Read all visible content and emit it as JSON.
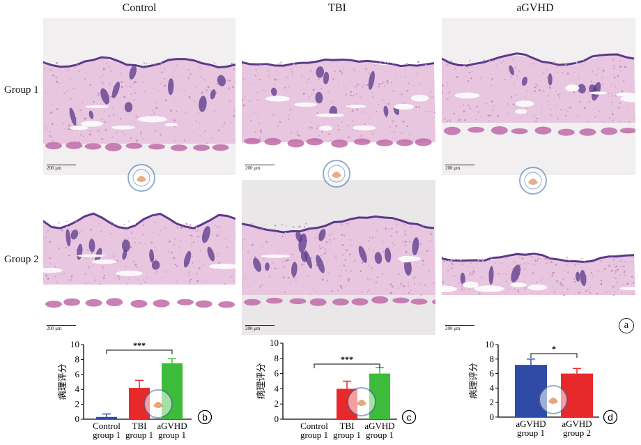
{
  "figure": {
    "column_titles": [
      "Control",
      "TBI",
      "aGVHD"
    ],
    "row_labels": [
      "Group 1",
      "Group 2"
    ],
    "panel_a_badge": "a",
    "scale_bar_labels": [
      "200 μm",
      "200 μm",
      "200 μm",
      "200 μm",
      "200 μm",
      "200 μm"
    ],
    "colors": {
      "he_pink": "#e8c6df",
      "he_purple": "#5a3a8a",
      "muscle": "#c06aa8",
      "bar_red": "#e8292b",
      "bar_green": "#3dbb3a",
      "bar_blue": "#2f4ba5"
    }
  },
  "chart_data": [
    {
      "type": "bar",
      "badge": "b",
      "ylabel": "病理评分",
      "ylim": [
        0,
        10
      ],
      "yticks": [
        "0",
        "2",
        "4",
        "6",
        "8",
        "10"
      ],
      "categories": [
        [
          "Control",
          "group 1"
        ],
        [
          "TBI",
          "group 1"
        ],
        [
          "aGVHD",
          "group 1"
        ]
      ],
      "values": [
        0.3,
        4.2,
        7.5
      ],
      "errors": [
        0.4,
        1.0,
        0.6
      ],
      "colors": [
        "#2f4ba5",
        "#e8292b",
        "#3dbb3a"
      ],
      "significance": {
        "from": 0,
        "to": 2,
        "label": "***"
      }
    },
    {
      "type": "bar",
      "badge": "c",
      "ylabel": "病理评分",
      "ylim": [
        0,
        10
      ],
      "yticks": [
        "0",
        "2",
        "4",
        "6",
        "8",
        "10"
      ],
      "categories": [
        [
          "Control",
          "group 1"
        ],
        [
          "TBI",
          "group 1"
        ],
        [
          "aGVHD",
          "group 1"
        ]
      ],
      "values": [
        0,
        4.0,
        6.0
      ],
      "errors": [
        0,
        1.0,
        0.8
      ],
      "colors": [
        "#2f4ba5",
        "#e8292b",
        "#3dbb3a"
      ],
      "significance": {
        "from": 0,
        "to": 2,
        "label": "***"
      }
    },
    {
      "type": "bar",
      "badge": "d",
      "ylabel": "病理评分",
      "ylim": [
        0,
        10
      ],
      "yticks": [
        "0",
        "2",
        "4",
        "6",
        "8",
        "10"
      ],
      "categories": [
        [
          "aGVHD",
          "group 1"
        ],
        [
          "aGVHD",
          "group 2"
        ]
      ],
      "values": [
        7.2,
        6.0
      ],
      "errors": [
        0.8,
        0.7
      ],
      "colors": [
        "#2f4ba5",
        "#e8292b"
      ],
      "significance": {
        "from": 0,
        "to": 1,
        "label": "*"
      }
    }
  ]
}
